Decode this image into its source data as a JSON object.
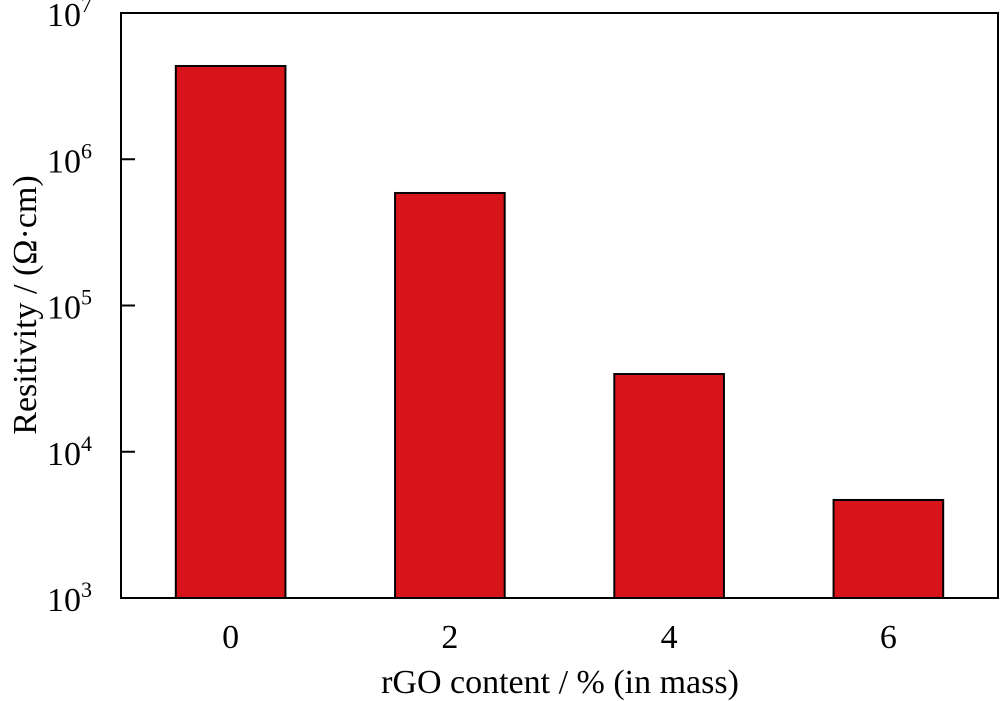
{
  "chart_data": {
    "type": "bar",
    "title": "",
    "xlabel": "rGO content / % (in mass)",
    "ylabel": "Resitivity / (Ω·cm)",
    "yscale": "log",
    "ylim": [
      1000,
      10000000
    ],
    "categories": [
      "0",
      "2",
      "4",
      "6"
    ],
    "values": [
      4340000,
      588000,
      34000,
      4680
    ],
    "y_ticks": [
      {
        "value": 1000,
        "base": "10",
        "exp": "3"
      },
      {
        "value": 10000,
        "base": "10",
        "exp": "4"
      },
      {
        "value": 100000,
        "base": "10",
        "exp": "5"
      },
      {
        "value": 1000000,
        "base": "10",
        "exp": "6"
      },
      {
        "value": 10000000,
        "base": "10",
        "exp": "7"
      }
    ],
    "bar_color": "#D7141A",
    "grid": false,
    "legend": "none"
  }
}
